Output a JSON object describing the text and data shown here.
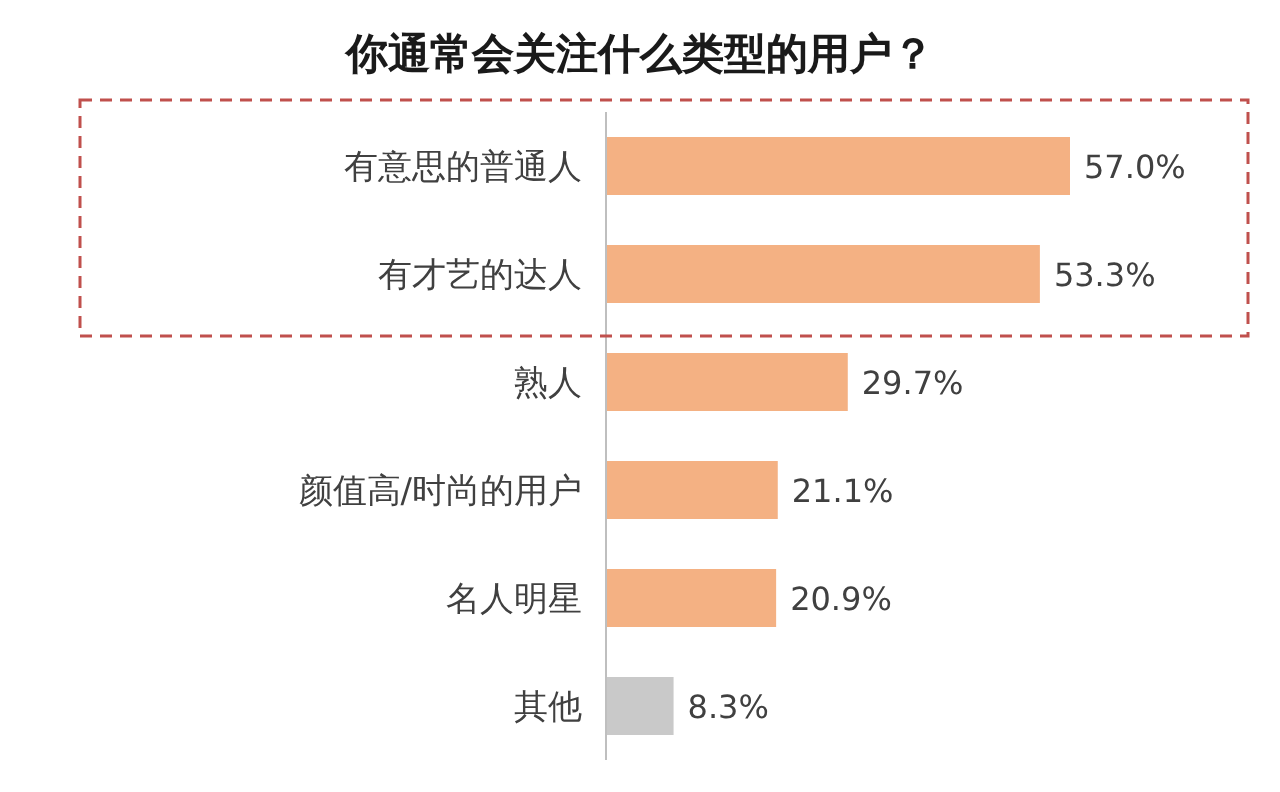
{
  "chart_data": {
    "type": "bar",
    "orientation": "horizontal",
    "title": "你通常会关注什么类型的用户？",
    "categories": [
      "有意思的普通人",
      "有才艺的达人",
      "熟人",
      "颜值高/时尚的用户",
      "名人明星",
      "其他"
    ],
    "values": [
      57.0,
      53.3,
      29.7,
      21.1,
      20.9,
      8.3
    ],
    "colors": [
      "#f4b183",
      "#f4b183",
      "#f4b183",
      "#f4b183",
      "#f4b183",
      "#c9c9c9"
    ],
    "value_labels": [
      "57.0%",
      "53.3%",
      "29.7%",
      "21.1%",
      "20.9%",
      "8.3%"
    ]
  }
}
